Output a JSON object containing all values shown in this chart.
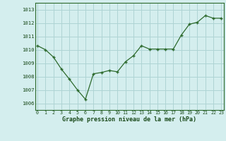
{
  "x": [
    0,
    1,
    2,
    3,
    4,
    5,
    6,
    7,
    8,
    9,
    10,
    11,
    12,
    13,
    14,
    15,
    16,
    17,
    18,
    19,
    20,
    21,
    22,
    23
  ],
  "y": [
    1010.3,
    1010.0,
    1009.45,
    1008.55,
    1007.8,
    1007.0,
    1006.3,
    1008.2,
    1008.3,
    1008.45,
    1008.35,
    1009.1,
    1009.55,
    1010.3,
    1010.05,
    1010.05,
    1010.05,
    1010.05,
    1011.1,
    1011.9,
    1012.05,
    1012.55,
    1012.35,
    1012.35
  ],
  "line_color": "#2d6a2d",
  "marker": "+",
  "bg_color": "#d4eeee",
  "grid_color": "#aed4d4",
  "xlabel": "Graphe pression niveau de la mer (hPa)",
  "xlabel_color": "#1a4a1a",
  "tick_color": "#1a4a1a",
  "ylim": [
    1005.5,
    1013.5
  ],
  "yticks": [
    1006,
    1007,
    1008,
    1009,
    1010,
    1011,
    1012,
    1013
  ],
  "xticks": [
    0,
    1,
    2,
    3,
    4,
    5,
    6,
    7,
    8,
    9,
    10,
    11,
    12,
    13,
    14,
    15,
    16,
    17,
    18,
    19,
    20,
    21,
    22,
    23
  ],
  "figsize": [
    3.2,
    2.0
  ],
  "dpi": 100
}
